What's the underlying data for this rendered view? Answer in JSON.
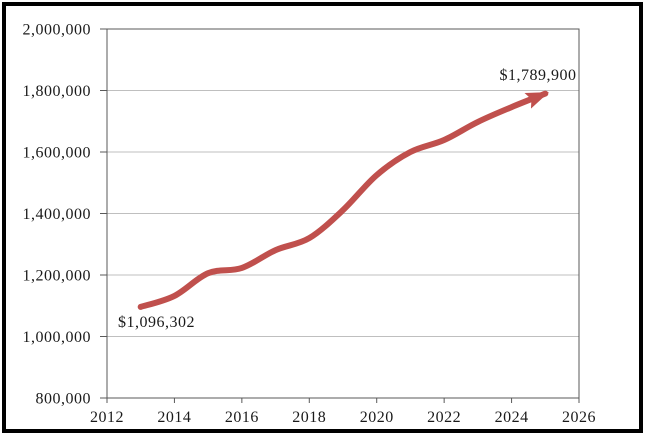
{
  "chart_data": {
    "type": "line",
    "title": "",
    "xlabel": "",
    "ylabel": "",
    "xlim": [
      2012,
      2026
    ],
    "ylim": [
      800000,
      2000000
    ],
    "x": [
      2013,
      2014,
      2015,
      2016,
      2017,
      2018,
      2019,
      2020,
      2021,
      2022,
      2023,
      2024,
      2025
    ],
    "values": [
      1096302,
      1132000,
      1206000,
      1223000,
      1281000,
      1320000,
      1411000,
      1525000,
      1600000,
      1639000,
      1698000,
      1746000,
      1789900
    ],
    "smoothed": true,
    "arrow_end": true,
    "line_width": 6,
    "grid": "horizontal",
    "legend": "none",
    "y_tick_values": [
      2000000,
      1800000,
      1600000,
      1400000,
      1200000,
      1000000,
      800000
    ],
    "y_tick_labels": [
      "2,000,000",
      "1,800,000",
      "1,600,000",
      "1,400,000",
      "1,200,000",
      "1,000,000",
      "800,000"
    ],
    "x_tick_values": [
      2012,
      2014,
      2016,
      2018,
      2020,
      2022,
      2024,
      2026
    ],
    "x_tick_labels": [
      "2012",
      "2014",
      "2016",
      "2018",
      "2020",
      "2022",
      "2024",
      "2026"
    ],
    "annotations": [
      {
        "label": "$1,096,302",
        "x": 2013,
        "value": 1096302,
        "position": "below-left of line start"
      },
      {
        "label": "$1,789,900",
        "x": 2025,
        "value": 1789900,
        "position": "above arrow end"
      }
    ],
    "colors": {
      "line": "#C0504D",
      "gridline": "#BFBFBF",
      "axis": "#595959",
      "text": "#1A1A1A",
      "background": "#FFFFFF",
      "frame": "#000000"
    }
  }
}
